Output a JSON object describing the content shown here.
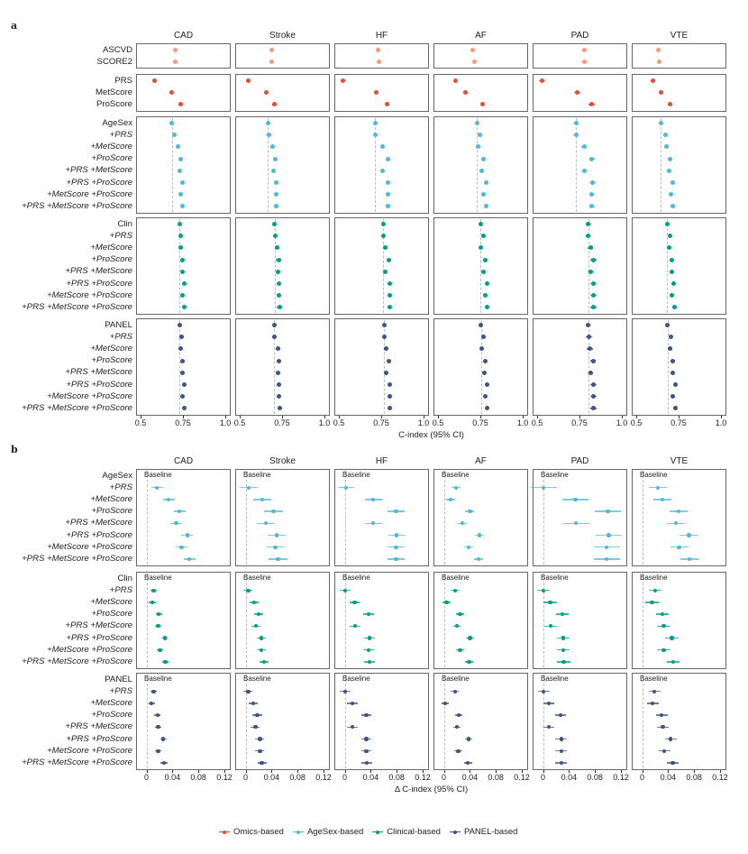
{
  "outcomes": [
    "CAD",
    "Stroke",
    "HF",
    "AF",
    "PAD",
    "VTE"
  ],
  "legend": [
    {
      "label": "Omics-based",
      "color": "#e64b35"
    },
    {
      "label": "AgeSex-based",
      "color": "#4dbbd5"
    },
    {
      "label": "Clinical-based",
      "color": "#00a087"
    },
    {
      "label": "PANEL-based",
      "color": "#3c5488"
    }
  ],
  "chart_data": [
    {
      "type": "scatter",
      "panel_label": "a",
      "xlabel": "C-index (95% CI)",
      "xlim": [
        0.473,
        1.032
      ],
      "ticks": [
        0.5,
        0.75,
        1.0
      ],
      "tick_labels": [
        "0.5",
        "0.75",
        "1.0"
      ],
      "blocks": [
        {
          "color": "#f39b7f",
          "ref": false,
          "rows": [
            "ASCVD",
            "SCORE2"
          ]
        },
        {
          "color": "#e64b35",
          "ref": false,
          "rows": [
            "PRS",
            "MetScore",
            "ProScore"
          ]
        },
        {
          "color": "#4dbbd5",
          "ref": true,
          "rows": [
            "AgeSex",
            "+PRS",
            "+MetScore",
            "+ProScore",
            "+PRS +MetScore",
            "+PRS +ProScore",
            "+MetScore +ProScore",
            "+PRS +MetScore +ProScore"
          ]
        },
        {
          "color": "#00a087",
          "ref": true,
          "rows": [
            "Clin",
            "+PRS",
            "+MetScore",
            "+ProScore",
            "+PRS +MetScore",
            "+PRS +ProScore",
            "+MetScore +ProScore",
            "+PRS +MetScore +ProScore"
          ]
        },
        {
          "color": "#3c5488",
          "ref": true,
          "rows": [
            "PANEL",
            "+PRS",
            "+MetScore",
            "+ProScore",
            "+PRS +MetScore",
            "+PRS +ProScore",
            "+MetScore +ProScore",
            "+PRS +MetScore +ProScore"
          ]
        }
      ],
      "ci_halfwidth": {
        "CAD": 0.006,
        "Stroke": 0.014,
        "HF": 0.011,
        "AF": 0.009,
        "PAD": 0.018,
        "VTE": 0.013
      },
      "series": {
        "CAD": [
          0.704,
          0.707,
          0.584,
          0.684,
          0.734,
          0.684,
          0.698,
          0.718,
          0.734,
          0.729,
          0.745,
          0.738,
          0.748,
          0.729,
          0.738,
          0.738,
          0.747,
          0.747,
          0.757,
          0.749,
          0.757,
          0.731,
          0.74,
          0.738,
          0.747,
          0.747,
          0.756,
          0.747,
          0.756
        ],
        "Stroke": [
          0.688,
          0.69,
          0.551,
          0.658,
          0.704,
          0.667,
          0.67,
          0.693,
          0.711,
          0.699,
          0.714,
          0.714,
          0.716,
          0.706,
          0.708,
          0.722,
          0.729,
          0.725,
          0.732,
          0.73,
          0.734,
          0.704,
          0.706,
          0.724,
          0.731,
          0.727,
          0.732,
          0.732,
          0.736
        ],
        "HF": [
          0.729,
          0.734,
          0.525,
          0.72,
          0.787,
          0.714,
          0.716,
          0.757,
          0.791,
          0.757,
          0.792,
          0.791,
          0.792,
          0.762,
          0.762,
          0.776,
          0.796,
          0.776,
          0.798,
          0.798,
          0.798,
          0.766,
          0.768,
          0.778,
          0.796,
          0.778,
          0.798,
          0.798,
          0.8
        ],
        "AF": [
          0.704,
          0.715,
          0.605,
          0.663,
          0.764,
          0.73,
          0.748,
          0.739,
          0.769,
          0.757,
          0.784,
          0.769,
          0.784,
          0.75,
          0.766,
          0.754,
          0.777,
          0.769,
          0.791,
          0.777,
          0.789,
          0.754,
          0.771,
          0.757,
          0.778,
          0.773,
          0.791,
          0.777,
          0.791
        ],
        "PAD": [
          0.777,
          0.778,
          0.53,
          0.738,
          0.823,
          0.729,
          0.729,
          0.777,
          0.824,
          0.778,
          0.826,
          0.824,
          0.824,
          0.803,
          0.803,
          0.814,
          0.831,
          0.815,
          0.831,
          0.831,
          0.833,
          0.803,
          0.805,
          0.812,
          0.83,
          0.814,
          0.831,
          0.831,
          0.831
        ],
        "VTE": [
          0.629,
          0.638,
          0.597,
          0.645,
          0.7,
          0.645,
          0.67,
          0.677,
          0.7,
          0.695,
          0.716,
          0.702,
          0.716,
          0.681,
          0.698,
          0.693,
          0.709,
          0.709,
          0.723,
          0.709,
          0.725,
          0.684,
          0.702,
          0.698,
          0.714,
          0.716,
          0.729,
          0.716,
          0.731
        ]
      }
    },
    {
      "type": "scatter",
      "panel_label": "b",
      "xlabel": "Δ C-index (95% CI)",
      "xlim": [
        -0.016,
        0.1297
      ],
      "ticks": [
        0,
        0.04,
        0.08,
        0.12
      ],
      "tick_labels": [
        "0",
        "0.04",
        "0.08",
        "0.12"
      ],
      "baseline_label": "Baseline",
      "blocks": [
        {
          "color": "#4dbbd5",
          "rows": [
            "AgeSex",
            "+PRS",
            "+MetScore",
            "+ProScore",
            "+PRS +MetScore",
            "+PRS +ProScore",
            "+MetScore +ProScore",
            "+PRS +MetScore +ProScore"
          ]
        },
        {
          "color": "#00a087",
          "rows": [
            "Clin",
            "+PRS",
            "+MetScore",
            "+ProScore",
            "+PRS +MetScore",
            "+PRS +ProScore",
            "+MetScore +ProScore",
            "+PRS +MetScore +ProScore"
          ]
        },
        {
          "color": "#3c5488",
          "rows": [
            "PANEL",
            "+PRS",
            "+MetScore",
            "+ProScore",
            "+PRS +MetScore",
            "+PRS +ProScore",
            "+MetScore +ProScore",
            "+PRS +MetScore +ProScore"
          ]
        }
      ],
      "ci_halfwidth": {
        "CAD": [
          0.009,
          0.005,
          0.005
        ],
        "Stroke": [
          0.014,
          0.007,
          0.007
        ],
        "HF": [
          0.013,
          0.008,
          0.008
        ],
        "AF": [
          0.007,
          0.006,
          0.006
        ],
        "PAD": [
          0.02,
          0.01,
          0.009
        ],
        "VTE": [
          0.014,
          0.01,
          0.009
        ]
      },
      "series": {
        "CAD": [
          0.016,
          0.034,
          0.051,
          0.046,
          0.063,
          0.054,
          0.066,
          0.011,
          0.009,
          0.019,
          0.018,
          0.028,
          0.021,
          0.029,
          0.011,
          0.008,
          0.017,
          0.018,
          0.026,
          0.018,
          0.027
        ],
        "Stroke": [
          0.005,
          0.026,
          0.043,
          0.031,
          0.048,
          0.046,
          0.05,
          0.004,
          0.013,
          0.02,
          0.016,
          0.024,
          0.024,
          0.028,
          0.004,
          0.012,
          0.018,
          0.015,
          0.022,
          0.022,
          0.025
        ],
        "HF": [
          0.002,
          0.044,
          0.079,
          0.044,
          0.08,
          0.079,
          0.079,
          0.0005,
          0.015,
          0.037,
          0.016,
          0.038,
          0.037,
          0.038,
          0.001,
          0.012,
          0.033,
          0.012,
          0.033,
          0.033,
          0.034
        ],
        "AF": [
          0.019,
          0.01,
          0.04,
          0.028,
          0.055,
          0.038,
          0.053,
          0.017,
          0.004,
          0.025,
          0.02,
          0.04,
          0.025,
          0.039,
          0.017,
          0.002,
          0.023,
          0.02,
          0.038,
          0.022,
          0.037
        ],
        "PAD": [
          0.001,
          0.05,
          0.1,
          0.051,
          0.101,
          0.098,
          0.098,
          0.0005,
          0.011,
          0.03,
          0.012,
          0.031,
          0.031,
          0.032,
          0.001,
          0.009,
          0.027,
          0.009,
          0.028,
          0.028,
          0.028
        ],
        "VTE": [
          0.024,
          0.031,
          0.056,
          0.052,
          0.072,
          0.057,
          0.073,
          0.02,
          0.015,
          0.031,
          0.033,
          0.046,
          0.033,
          0.048,
          0.019,
          0.016,
          0.03,
          0.032,
          0.044,
          0.034,
          0.047
        ]
      }
    }
  ]
}
